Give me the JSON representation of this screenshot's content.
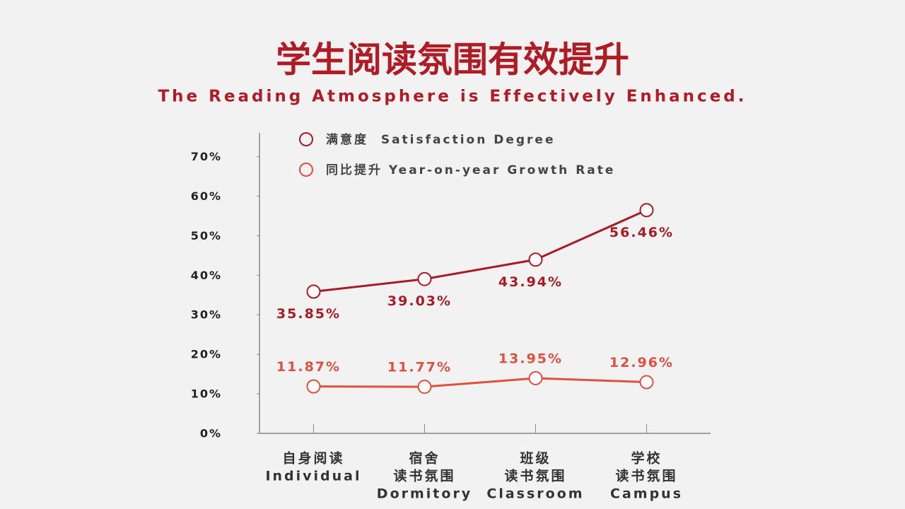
{
  "chart_data": {
    "type": "line",
    "title": "学生阅读氛围有效提升",
    "subtitle": "The Reading Atmosphere is Effectively Enhanced.",
    "categories": [
      [
        "自身阅读",
        "Individual"
      ],
      [
        "宿舍",
        "读书氛围",
        "Dormitory"
      ],
      [
        "班级",
        "读书氛围",
        "Classroom"
      ],
      [
        "学校",
        "读书氛围",
        "Campus"
      ]
    ],
    "series": [
      {
        "name": "满意度  Satisfaction Degree",
        "color": "#a81b25",
        "values": [
          35.85,
          39.03,
          43.94,
          56.46
        ],
        "value_labels": [
          "35.85%",
          "39.03%",
          "43.94%",
          "56.46%"
        ]
      },
      {
        "name": "同比提升 Year-on-year Growth Rate",
        "color": "#e0503f",
        "values": [
          11.87,
          11.77,
          13.95,
          12.96
        ],
        "value_labels": [
          "11.87%",
          "11.77%",
          "13.95%",
          "12.96%"
        ]
      }
    ],
    "ylim": [
      0,
      76
    ],
    "yticks": [
      {
        "value": 0,
        "label": "0%"
      },
      {
        "value": 10,
        "label": "10%"
      },
      {
        "value": 20,
        "label": "20%"
      },
      {
        "value": 30,
        "label": "30%"
      },
      {
        "value": 40,
        "label": "40%"
      },
      {
        "value": 50,
        "label": "50%"
      },
      {
        "value": 60,
        "label": "60%"
      },
      {
        "value": 70,
        "label": "70%"
      }
    ]
  }
}
